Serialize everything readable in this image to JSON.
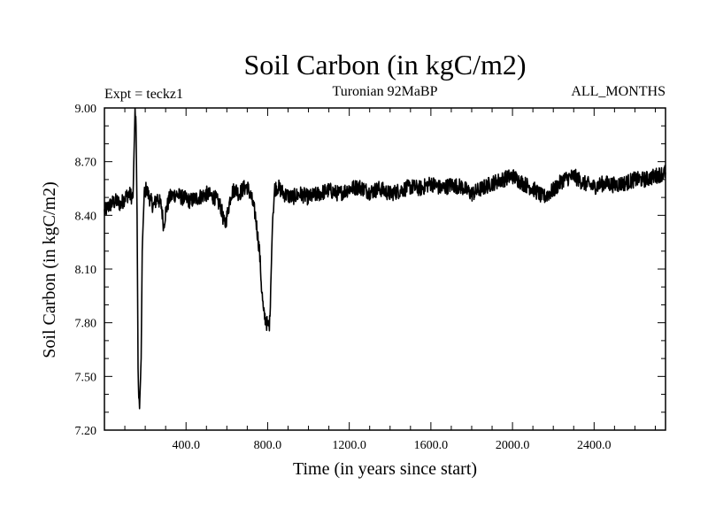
{
  "chart_data": {
    "type": "line",
    "title": "Soil Carbon (in kgC/m2)",
    "subtitle_left": "Expt = teckz1",
    "subtitle_center": "Turonian  92MaBP",
    "subtitle_right": "ALL_MONTHS",
    "xlabel": "Time (in years since start)",
    "ylabel": "Soil Carbon (in kgC/m2)",
    "xlim": [
      0,
      2750
    ],
    "ylim": [
      7.2,
      9.0
    ],
    "xticks": [
      400,
      800,
      1200,
      1600,
      2000,
      2400
    ],
    "xtick_labels": [
      "400.0",
      "800.0",
      "1200.0",
      "1600.0",
      "2000.0",
      "2400.0"
    ],
    "yticks": [
      7.2,
      7.5,
      7.8,
      8.1,
      8.4,
      8.7,
      9.0
    ],
    "ytick_labels": [
      "7.20",
      "7.50",
      "7.80",
      "8.10",
      "8.40",
      "8.70",
      "9.00"
    ],
    "series": [
      {
        "name": "Soil Carbon",
        "color": "#000000",
        "x": [
          0,
          20,
          40,
          60,
          80,
          100,
          120,
          140,
          150,
          155,
          160,
          165,
          172,
          180,
          185,
          195,
          205,
          220,
          240,
          260,
          280,
          290,
          300,
          320,
          350,
          380,
          420,
          460,
          500,
          540,
          570,
          590,
          605,
          620,
          640,
          660,
          680,
          700,
          720,
          740,
          760,
          770,
          780,
          790,
          800,
          810,
          815,
          825,
          835,
          850,
          880,
          920,
          960,
          1000,
          1050,
          1100,
          1150,
          1200,
          1250,
          1300,
          1350,
          1400,
          1450,
          1500,
          1550,
          1600,
          1650,
          1700,
          1750,
          1800,
          1850,
          1900,
          1950,
          2000,
          2050,
          2100,
          2150,
          2200,
          2250,
          2300,
          2350,
          2400,
          2450,
          2500,
          2550,
          2600,
          2650,
          2700,
          2750
        ],
        "y": [
          8.42,
          8.45,
          8.47,
          8.48,
          8.46,
          8.5,
          8.52,
          8.5,
          8.98,
          8.9,
          8.4,
          7.5,
          7.32,
          7.6,
          8.2,
          8.52,
          8.55,
          8.5,
          8.45,
          8.5,
          8.45,
          8.34,
          8.42,
          8.5,
          8.52,
          8.5,
          8.48,
          8.5,
          8.52,
          8.5,
          8.45,
          8.34,
          8.42,
          8.52,
          8.55,
          8.52,
          8.55,
          8.56,
          8.5,
          8.4,
          8.2,
          8.0,
          7.85,
          7.82,
          7.78,
          7.8,
          8.0,
          8.4,
          8.55,
          8.56,
          8.52,
          8.5,
          8.52,
          8.5,
          8.52,
          8.54,
          8.52,
          8.55,
          8.56,
          8.53,
          8.55,
          8.52,
          8.54,
          8.56,
          8.55,
          8.58,
          8.55,
          8.57,
          8.56,
          8.52,
          8.55,
          8.58,
          8.6,
          8.62,
          8.58,
          8.55,
          8.5,
          8.54,
          8.6,
          8.62,
          8.58,
          8.56,
          8.58,
          8.57,
          8.58,
          8.6,
          8.6,
          8.62,
          8.64
        ]
      }
    ]
  }
}
